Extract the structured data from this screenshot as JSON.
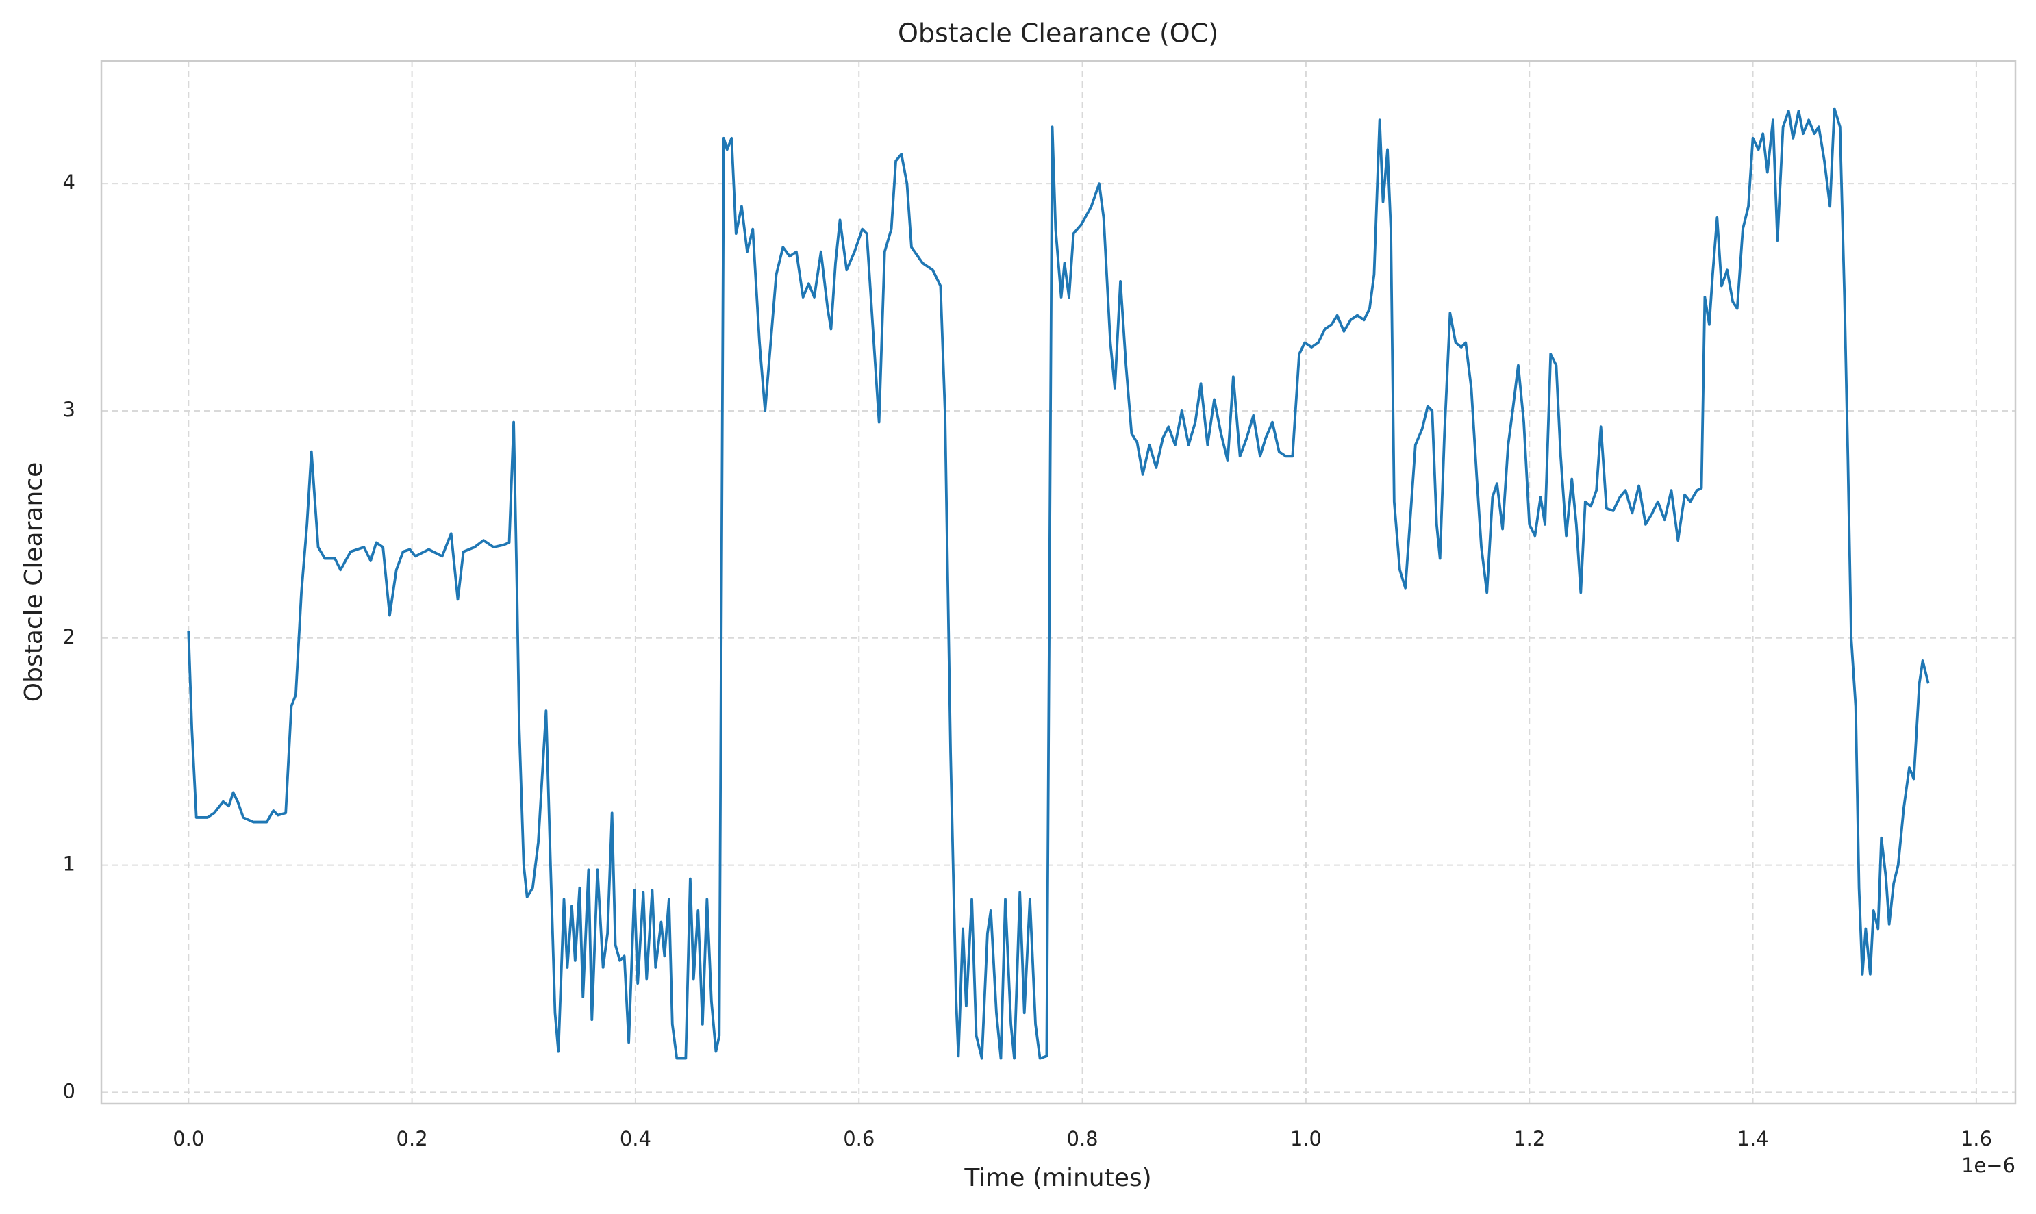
{
  "chart_data": {
    "type": "line",
    "title": "Obstacle Clearance (OC)",
    "x_label": "Time (minutes)",
    "y_label": "Obstacle Clearance",
    "x_offset_label": "1e−6",
    "color": "#1f77b4",
    "grid": true,
    "xlim": [
      -0.078,
      1.635
    ],
    "ylim": [
      -0.05,
      4.54
    ],
    "xticks": [
      {
        "value": 0,
        "label": "0.0"
      },
      {
        "value": 0.2,
        "label": "0.2"
      },
      {
        "value": 0.4,
        "label": "0.4"
      },
      {
        "value": 0.6,
        "label": "0.6"
      },
      {
        "value": 0.8,
        "label": "0.8"
      },
      {
        "value": 1,
        "label": "1.0"
      },
      {
        "value": 1.2,
        "label": "1.2"
      },
      {
        "value": 1.4,
        "label": "1.4"
      },
      {
        "value": 1.6,
        "label": "1.6"
      }
    ],
    "yticks": [
      0,
      1,
      2,
      3,
      4
    ],
    "x": [
      0.0,
      0.003,
      0.007,
      0.017,
      0.023,
      0.031,
      0.036,
      0.04,
      0.044,
      0.049,
      0.058,
      0.07,
      0.076,
      0.08,
      0.087,
      0.092,
      0.096,
      0.101,
      0.106,
      0.11,
      0.116,
      0.122,
      0.131,
      0.136,
      0.145,
      0.157,
      0.163,
      0.168,
      0.174,
      0.18,
      0.186,
      0.192,
      0.198,
      0.203,
      0.215,
      0.227,
      0.235,
      0.241,
      0.246,
      0.256,
      0.264,
      0.273,
      0.282,
      0.287,
      0.291,
      0.294,
      0.296,
      0.3,
      0.303,
      0.308,
      0.313,
      0.32,
      0.324,
      0.328,
      0.331,
      0.336,
      0.339,
      0.343,
      0.346,
      0.35,
      0.353,
      0.358,
      0.361,
      0.366,
      0.371,
      0.375,
      0.379,
      0.382,
      0.386,
      0.39,
      0.394,
      0.399,
      0.402,
      0.407,
      0.41,
      0.415,
      0.418,
      0.423,
      0.426,
      0.43,
      0.433,
      0.437,
      0.445,
      0.449,
      0.452,
      0.456,
      0.46,
      0.464,
      0.468,
      0.472,
      0.475,
      0.479,
      0.482,
      0.486,
      0.49,
      0.495,
      0.5,
      0.505,
      0.511,
      0.516,
      0.521,
      0.526,
      0.532,
      0.538,
      0.544,
      0.55,
      0.555,
      0.56,
      0.566,
      0.572,
      0.575,
      0.579,
      0.583,
      0.589,
      0.596,
      0.603,
      0.607,
      0.612,
      0.618,
      0.623,
      0.629,
      0.633,
      0.638,
      0.643,
      0.647,
      0.657,
      0.666,
      0.673,
      0.677,
      0.682,
      0.687,
      0.689,
      0.693,
      0.696,
      0.701,
      0.705,
      0.71,
      0.715,
      0.718,
      0.723,
      0.727,
      0.731,
      0.736,
      0.739,
      0.744,
      0.748,
      0.753,
      0.758,
      0.762,
      0.768,
      0.773,
      0.776,
      0.781,
      0.784,
      0.788,
      0.792,
      0.799,
      0.808,
      0.815,
      0.819,
      0.825,
      0.829,
      0.834,
      0.839,
      0.844,
      0.849,
      0.854,
      0.86,
      0.866,
      0.872,
      0.877,
      0.883,
      0.889,
      0.895,
      0.901,
      0.906,
      0.912,
      0.918,
      0.924,
      0.93,
      0.935,
      0.941,
      0.947,
      0.953,
      0.959,
      0.964,
      0.97,
      0.976,
      0.982,
      0.988,
      0.994,
      0.999,
      1.005,
      1.011,
      1.017,
      1.023,
      1.028,
      1.034,
      1.04,
      1.046,
      1.052,
      1.057,
      1.061,
      1.066,
      1.069,
      1.073,
      1.076,
      1.079,
      1.084,
      1.089,
      1.093,
      1.098,
      1.104,
      1.109,
      1.113,
      1.117,
      1.12,
      1.124,
      1.129,
      1.134,
      1.139,
      1.143,
      1.148,
      1.153,
      1.157,
      1.162,
      1.167,
      1.171,
      1.176,
      1.181,
      1.185,
      1.19,
      1.195,
      1.2,
      1.205,
      1.21,
      1.214,
      1.219,
      1.224,
      1.228,
      1.233,
      1.238,
      1.242,
      1.246,
      1.25,
      1.255,
      1.26,
      1.264,
      1.269,
      1.275,
      1.281,
      1.286,
      1.292,
      1.298,
      1.304,
      1.31,
      1.315,
      1.321,
      1.327,
      1.333,
      1.339,
      1.344,
      1.35,
      1.354,
      1.357,
      1.361,
      1.364,
      1.368,
      1.372,
      1.377,
      1.382,
      1.386,
      1.391,
      1.396,
      1.4,
      1.405,
      1.409,
      1.413,
      1.418,
      1.422,
      1.427,
      1.432,
      1.436,
      1.441,
      1.445,
      1.45,
      1.455,
      1.459,
      1.464,
      1.469,
      1.473,
      1.478,
      1.482,
      1.485,
      1.488,
      1.492,
      1.495,
      1.498,
      1.501,
      1.505,
      1.508,
      1.512,
      1.515,
      1.519,
      1.522,
      1.526,
      1.53,
      1.535,
      1.54,
      1.544,
      1.549,
      1.552,
      1.557
    ],
    "values": [
      2.03,
      1.6,
      1.21,
      1.21,
      1.23,
      1.28,
      1.26,
      1.32,
      1.28,
      1.21,
      1.19,
      1.19,
      1.24,
      1.22,
      1.23,
      1.7,
      1.75,
      2.2,
      2.5,
      2.82,
      2.4,
      2.35,
      2.35,
      2.3,
      2.38,
      2.4,
      2.34,
      2.42,
      2.4,
      2.1,
      2.3,
      2.38,
      2.39,
      2.36,
      2.39,
      2.36,
      2.46,
      2.17,
      2.38,
      2.4,
      2.43,
      2.4,
      2.41,
      2.42,
      2.95,
      2.2,
      1.6,
      1.0,
      0.86,
      0.9,
      1.1,
      1.68,
      1.0,
      0.35,
      0.18,
      0.85,
      0.55,
      0.82,
      0.58,
      0.9,
      0.42,
      0.98,
      0.32,
      0.98,
      0.55,
      0.7,
      1.23,
      0.65,
      0.58,
      0.6,
      0.22,
      0.89,
      0.48,
      0.88,
      0.5,
      0.89,
      0.55,
      0.75,
      0.6,
      0.85,
      0.3,
      0.15,
      0.15,
      0.94,
      0.5,
      0.8,
      0.3,
      0.85,
      0.4,
      0.18,
      0.25,
      4.2,
      4.15,
      4.2,
      3.78,
      3.9,
      3.7,
      3.8,
      3.3,
      3.0,
      3.3,
      3.6,
      3.72,
      3.68,
      3.7,
      3.5,
      3.56,
      3.5,
      3.7,
      3.45,
      3.36,
      3.65,
      3.84,
      3.62,
      3.7,
      3.8,
      3.78,
      3.4,
      2.95,
      3.7,
      3.8,
      4.1,
      4.13,
      4.0,
      3.72,
      3.65,
      3.62,
      3.55,
      3.0,
      1.5,
      0.4,
      0.16,
      0.72,
      0.38,
      0.85,
      0.25,
      0.15,
      0.7,
      0.8,
      0.35,
      0.15,
      0.85,
      0.3,
      0.15,
      0.88,
      0.35,
      0.85,
      0.3,
      0.15,
      0.16,
      4.25,
      3.8,
      3.5,
      3.65,
      3.5,
      3.78,
      3.82,
      3.9,
      4.0,
      3.85,
      3.3,
      3.1,
      3.57,
      3.2,
      2.9,
      2.86,
      2.72,
      2.85,
      2.75,
      2.88,
      2.93,
      2.85,
      3.0,
      2.85,
      2.95,
      3.12,
      2.85,
      3.05,
      2.9,
      2.78,
      3.15,
      2.8,
      2.88,
      2.98,
      2.8,
      2.88,
      2.95,
      2.82,
      2.8,
      2.8,
      3.25,
      3.3,
      3.28,
      3.3,
      3.36,
      3.38,
      3.42,
      3.35,
      3.4,
      3.42,
      3.4,
      3.45,
      3.6,
      4.28,
      3.92,
      4.15,
      3.8,
      2.6,
      2.3,
      2.22,
      2.5,
      2.85,
      2.92,
      3.02,
      3.0,
      2.5,
      2.35,
      2.9,
      3.43,
      3.3,
      3.28,
      3.3,
      3.1,
      2.7,
      2.4,
      2.2,
      2.62,
      2.68,
      2.48,
      2.85,
      3.0,
      3.2,
      2.95,
      2.5,
      2.45,
      2.62,
      2.5,
      3.25,
      3.2,
      2.8,
      2.45,
      2.7,
      2.5,
      2.2,
      2.6,
      2.58,
      2.65,
      2.93,
      2.57,
      2.56,
      2.62,
      2.65,
      2.55,
      2.67,
      2.5,
      2.55,
      2.6,
      2.52,
      2.65,
      2.43,
      2.63,
      2.6,
      2.65,
      2.66,
      3.5,
      3.38,
      3.6,
      3.85,
      3.55,
      3.62,
      3.48,
      3.45,
      3.8,
      3.9,
      4.2,
      4.15,
      4.22,
      4.05,
      4.28,
      3.75,
      4.25,
      4.32,
      4.2,
      4.32,
      4.22,
      4.28,
      4.22,
      4.25,
      4.1,
      3.9,
      4.33,
      4.25,
      3.5,
      2.8,
      2.0,
      1.7,
      0.9,
      0.52,
      0.72,
      0.52,
      0.8,
      0.72,
      1.12,
      0.95,
      0.74,
      0.92,
      1.0,
      1.25,
      1.43,
      1.38,
      1.8,
      1.9,
      1.8
    ]
  }
}
